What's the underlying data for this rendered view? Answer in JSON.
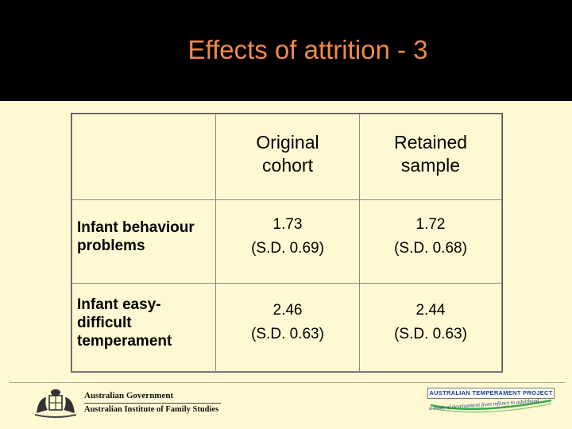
{
  "slide": {
    "title": "Effects of attrition - 3"
  },
  "table": {
    "headers": [
      "",
      "Original\ncohort",
      "Retained\nsample"
    ],
    "rows": [
      {
        "label": "Infant behaviour\nproblems",
        "original": "1.73\n(S.D. 0.69)",
        "retained": "1.72\n(S.D. 0.68)"
      },
      {
        "label": "Infant easy-\ndifficult\ntemperament",
        "original": "2.46\n(S.D. 0.63)",
        "retained": "2.44\n(S.D. 0.63)"
      }
    ]
  },
  "footer": {
    "left_logo": {
      "line1": "Australian Government",
      "line2": "Australian Institute of Family Studies",
      "icon": "coat-of-arms-icon"
    },
    "right_logo": {
      "name": "AUSTRALIAN TEMPERAMENT PROJECT",
      "tagline": "a study of development from infancy to adulthood"
    }
  },
  "colors": {
    "background": "#fff9d3",
    "title_bar": "#000000",
    "title_text": "#f08a4b"
  }
}
